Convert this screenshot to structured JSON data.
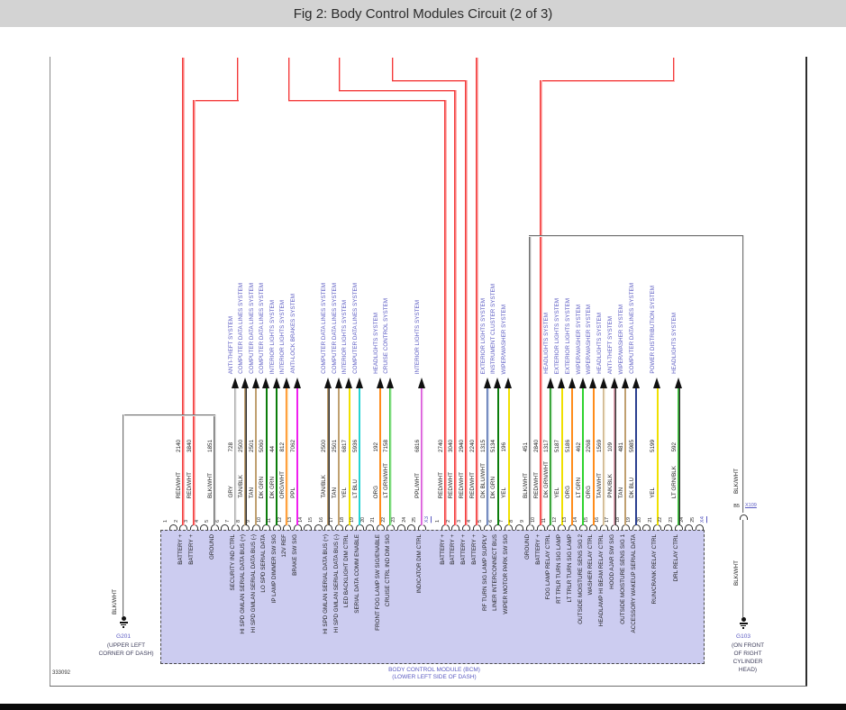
{
  "title": "Fig 2: Body Control Modules Circuit (2 of 3)",
  "figure_number": "333092",
  "module": {
    "name": "BODY CONTROL MODULE (BCM)",
    "location": "(LOWER LEFT SIDE OF DASH)"
  },
  "grounds": {
    "left": {
      "id": "G201",
      "wire": "BLK/WHT",
      "loc1": "(UPPER LEFT",
      "loc2": "CORNER OF DASH)"
    },
    "right": {
      "id": "G103",
      "wire_upper": "BLK/WHT",
      "wire_lower": "BLK/WHT",
      "pin": "B5",
      "connector": "X109",
      "loc1": "(ON FRONT",
      "loc2": "OF RIGHT",
      "loc3": "CYLINDER",
      "loc4": "HEAD)"
    }
  },
  "connectors": [
    {
      "id": "X3",
      "pins": [
        {
          "n": 1
        },
        {
          "n": 2,
          "color": "RED/WHT",
          "circuit": "2140",
          "label": "BATTERY +",
          "type": "power"
        },
        {
          "n": 3,
          "color": "RED/WHT",
          "circuit": "3840",
          "label": "BATTERY +",
          "type": "power"
        },
        {
          "n": 4
        },
        {
          "n": 5,
          "color": "BLK/WHT",
          "circuit": "1851",
          "label": "GROUND",
          "type": "ground"
        },
        {
          "n": 6
        },
        {
          "n": 7,
          "color": "GRY",
          "circuit": "728",
          "label": "SECURITY IND CTRL",
          "system": "ANTI-THEFT SYSTEM"
        },
        {
          "n": 8,
          "color": "TAN/BLK",
          "circuit": "2500",
          "label": "HI SPD GMLAN SERIAL DATA BUS (+)",
          "system": "COMPUTER DATA LINES SYSTEM"
        },
        {
          "n": 9,
          "color": "TAN",
          "circuit": "2501",
          "label": "HI SPD GMLAN SERIAL DATA BUS (-)",
          "system": "COMPUTER DATA LINES SYSTEM"
        },
        {
          "n": 10,
          "color": "DK GRN",
          "circuit": "5060",
          "label": "LO SPD SERIAL DATA",
          "system": "COMPUTER DATA LINES SYSTEM"
        },
        {
          "n": 11,
          "color": "DK GRN",
          "circuit": "44",
          "label": "IP LAMP DIMMER SW SIG",
          "system": "INTERIOR LIGHTS SYSTEM"
        },
        {
          "n": 12,
          "color": "ORG/WHT",
          "circuit": "812",
          "label": "12V REF",
          "system": "INTERIOR LIGHTS SYSTEM"
        },
        {
          "n": 13,
          "color": "PPL",
          "circuit": "7062",
          "label": "BRAKE SW SIG",
          "system": "ANTI-LOCK BRAKES SYSTEM"
        },
        {
          "n": 14
        },
        {
          "n": 15
        },
        {
          "n": 16,
          "color": "TAN/BLK",
          "circuit": "2500",
          "label": "HI SPD GMLAN SERIAL DATA BUS (+)",
          "system": "COMPUTER DATA LINES SYSTEM"
        },
        {
          "n": 17,
          "color": "TAN",
          "circuit": "2501",
          "label": "HI SPD GMLAN SERIAL DATA BUS (-)",
          "system": "COMPUTER DATA LINES SYSTEM"
        },
        {
          "n": 18,
          "color": "YEL",
          "circuit": "6817",
          "label": "LED BACKLIGHT DIM CTRL",
          "system": "INTERIOR LIGHTS SYSTEM"
        },
        {
          "n": 19,
          "color": "LT BLU",
          "circuit": "5936",
          "label": "SERIAL DATA COMM ENABLE",
          "system": "COMPUTER DATA LINES SYSTEM"
        },
        {
          "n": 20
        },
        {
          "n": 21,
          "color": "ORG",
          "circuit": "192",
          "label": "FRONT FOG LAMP SW SIG/ENABLE",
          "system": "HEADLIGHTS SYSTEM"
        },
        {
          "n": 22,
          "color": "LT GRN/WHT",
          "circuit": "7158",
          "label": "CRUISE CTRL IND DIM SIG",
          "system": "CRUISE CONTROL SYSTEM"
        },
        {
          "n": 23
        },
        {
          "n": 24
        },
        {
          "n": 25,
          "color": "PPL/WHT",
          "circuit": "6816",
          "label": "INDICATOR DIM CTRL",
          "system": "INTERIOR LIGHTS SYSTEM"
        }
      ]
    },
    {
      "id": "X4",
      "pins": [
        {
          "n": 1,
          "color": "RED/WHT",
          "circuit": "2740",
          "label": "BATTERY +",
          "type": "power"
        },
        {
          "n": 2,
          "color": "RED/WHT",
          "circuit": "3040",
          "label": "BATTERY +",
          "type": "power"
        },
        {
          "n": 3,
          "color": "RED/WHT",
          "circuit": "2940",
          "label": "BATTERY +",
          "type": "power"
        },
        {
          "n": 4,
          "color": "RED/WHT",
          "circuit": "2240",
          "label": "BATTERY +",
          "type": "power"
        },
        {
          "n": 5,
          "color": "DK BLU/WHT",
          "circuit": "1315",
          "label": "RF TURN SIG LAMP SUPPLY",
          "system": "EXTERIOR LIGHTS SYSTEM"
        },
        {
          "n": 6,
          "color": "DK GRN",
          "circuit": "5134",
          "label": "LINER INTERCONNECT BUS",
          "system": "INSTRUMENT CLUSTER SYSTEM"
        },
        {
          "n": 7,
          "color": "YEL",
          "circuit": "196",
          "label": "WIPER MOTOR PARK SW SIG",
          "system": "WIPER/WASHER SYSTEM"
        },
        {
          "n": 8
        },
        {
          "n": 9,
          "color": "BLK/WHT",
          "circuit": "451",
          "label": "GROUND",
          "type": "ground"
        },
        {
          "n": 10,
          "color": "RED/WHT",
          "circuit": "2840",
          "label": "BATTERY +",
          "type": "power"
        },
        {
          "n": 11,
          "color": "DK GRN/WHT",
          "circuit": "1317",
          "label": "FOG LAMP RELAY CTRL",
          "system": "HEADLIGHTS SYSTEM"
        },
        {
          "n": 12,
          "color": "YEL",
          "circuit": "5187",
          "label": "RT TRLR TURN SIG LAMP",
          "system": "EXTERIOR LIGHTS SYSTEM"
        },
        {
          "n": 13,
          "color": "ORG",
          "circuit": "5186",
          "label": "LT TRLR TURN SIG LAMP",
          "system": "EXTERIOR LIGHTS SYSTEM"
        },
        {
          "n": 14,
          "color": "LT GRN",
          "circuit": "462",
          "label": "OUTSIDE MOISTURE SENS SIG 2",
          "system": "WIPER/WASHER SYSTEM"
        },
        {
          "n": 15,
          "color": "ORG",
          "circuit": "2268",
          "label": "WASHER RELAY CTRL",
          "system": "WIPER/WASHER SYSTEM"
        },
        {
          "n": 16,
          "color": "TAN/WHT",
          "circuit": "1569",
          "label": "HEADLAMP HI BEAM RELAY CTRL",
          "system": "HEADLIGHTS SYSTEM"
        },
        {
          "n": 17,
          "color": "PNK/BLK",
          "circuit": "109",
          "label": "HOOD AJAR SW SIG",
          "system": "ANTI-THEFT SYSTEM"
        },
        {
          "n": 18,
          "color": "TAN",
          "circuit": "481",
          "label": "OUTSIDE MOISTURE SENS SIG 1",
          "system": "WIPER/WASHER SYSTEM"
        },
        {
          "n": 19,
          "color": "DK BLU",
          "circuit": "5985",
          "label": "ACCESSORY WAKEUP SERIAL DATA",
          "system": "COMPUTER DATA LINES SYSTEM"
        },
        {
          "n": 20
        },
        {
          "n": 21,
          "color": "YEL",
          "circuit": "5199",
          "label": "RUN/CRANK RELAY CTRL",
          "system": "POWER DISTRIBUTION SYSTEM"
        },
        {
          "n": 22
        },
        {
          "n": 23,
          "color": "LT GRN/BLK",
          "circuit": "592",
          "label": "DRL RELAY CTRL",
          "system": "HEADLIGHTS SYSTEM"
        },
        {
          "n": 24
        },
        {
          "n": 25
        }
      ]
    }
  ],
  "colors": {
    "accent_blue": "#5a5ac2",
    "ground_text": "#41415e",
    "wires": {
      "RED/WHT": [
        "#f23b3b",
        "#ffb3b3"
      ],
      "BLK/WHT": [
        "#6e6e6e",
        "#e8e8e8"
      ],
      "GRY": [
        "#b0b0b0",
        "#f0f0f0"
      ],
      "TAN/BLK": [
        "#c0a070",
        "#303030"
      ],
      "TAN": [
        "#c0a070",
        null
      ],
      "DK GRN": [
        "#0b7d0b",
        null
      ],
      "ORG/WHT": [
        "#ff8c1a",
        "#ffe0b3"
      ],
      "PPL": [
        "#f020f0",
        null
      ],
      "YEL": [
        "#f0e000",
        null
      ],
      "LT BLU": [
        "#27d3d3",
        null
      ],
      "ORG": [
        "#ff8c1a",
        null
      ],
      "LT GRN/WHT": [
        "#41c941",
        "#d2f5d2"
      ],
      "PPL/WHT": [
        "#d84fd8",
        "#f7dcf7"
      ],
      "DK BLU/WHT": [
        "#5671b0",
        "#d0dcf0"
      ],
      "DK GRN/WHT": [
        "#0b8c0b",
        "#d2f0d2"
      ],
      "LT GRN": [
        "#2fd32f",
        null
      ],
      "TAN/WHT": [
        "#cdb389",
        "#f7f0e0"
      ],
      "PNK/BLK": [
        "#e6a4b4",
        "#3a3a3a"
      ],
      "DK BLU": [
        "#2a3f8f",
        null
      ],
      "LT GRN/BLK": [
        "#3ecf3e",
        "#303030"
      ]
    }
  }
}
